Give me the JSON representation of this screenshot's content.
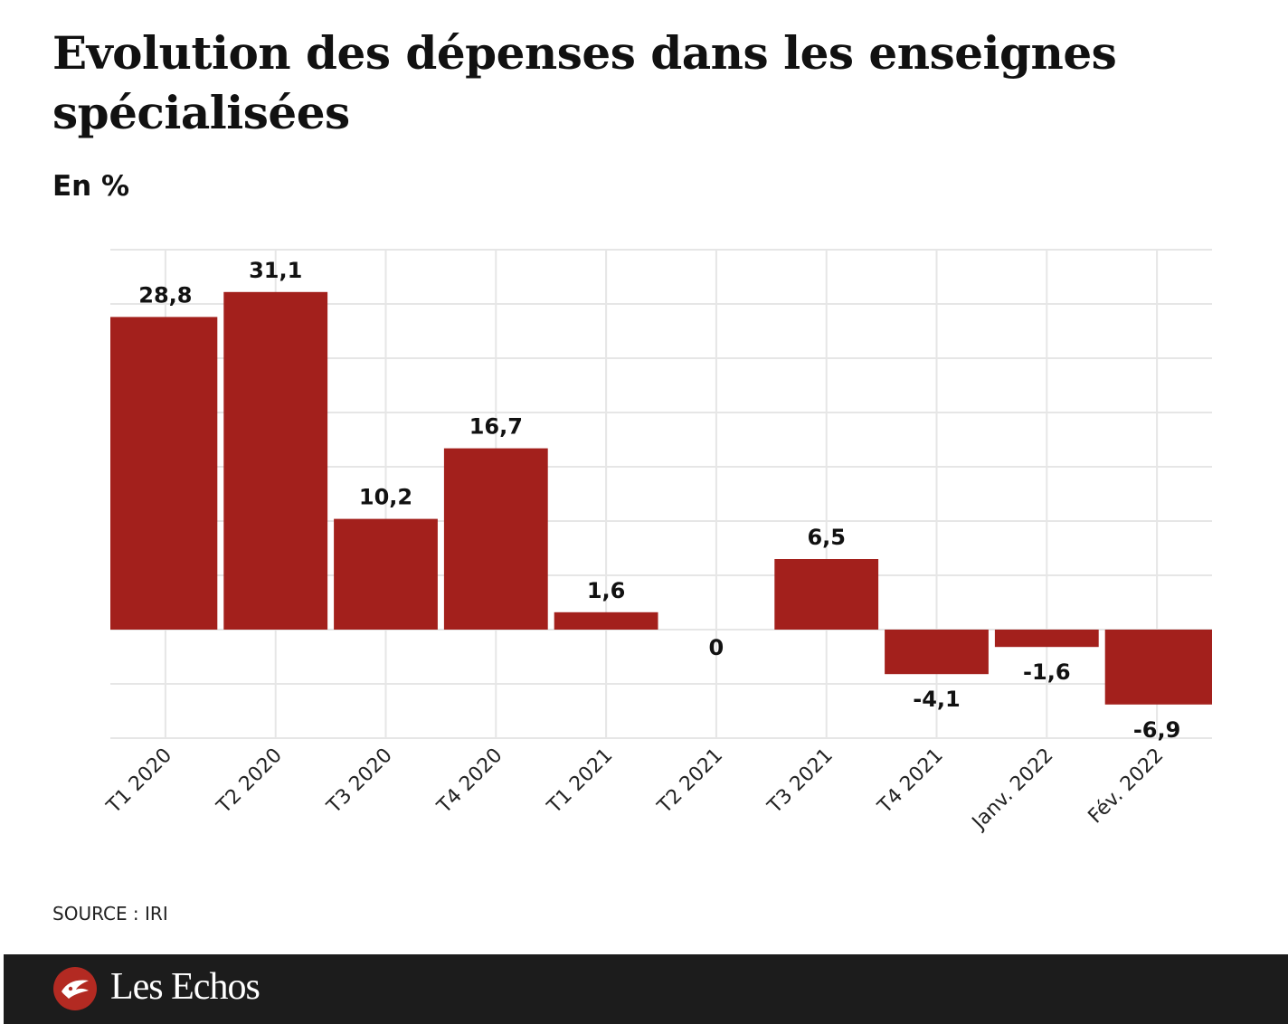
{
  "title": "Evolution des dépenses dans les enseignes spécialisées",
  "subtitle": "En %",
  "source": "SOURCE : IRI",
  "brand": "Les Echos",
  "colors": {
    "bar": "#a3201c",
    "grid": "#e6e6e6",
    "footer": "#1c1c1c",
    "text": "#111111"
  },
  "chart_data": {
    "type": "bar",
    "categories": [
      "T1 2020",
      "T2 2020",
      "T3 2020",
      "T4 2020",
      "T1 2021",
      "T2 2021",
      "T3 2021",
      "T4 2021",
      "Janv. 2022",
      "Fév. 2022"
    ],
    "values": [
      28.8,
      31.1,
      10.2,
      16.7,
      1.6,
      0,
      6.5,
      -4.1,
      -1.6,
      -6.9
    ],
    "data_labels": [
      "28,8",
      "31,1",
      "10,2",
      "16,7",
      "1,6",
      "0",
      "6,5",
      "-4,1",
      "-1,6",
      "-6,9"
    ],
    "title": "Evolution des dépenses dans les enseignes spécialisées",
    "subtitle": "En %",
    "xlabel": "",
    "ylabel": "",
    "ylim": [
      -10,
      35
    ],
    "grid": true,
    "legend": "none"
  }
}
